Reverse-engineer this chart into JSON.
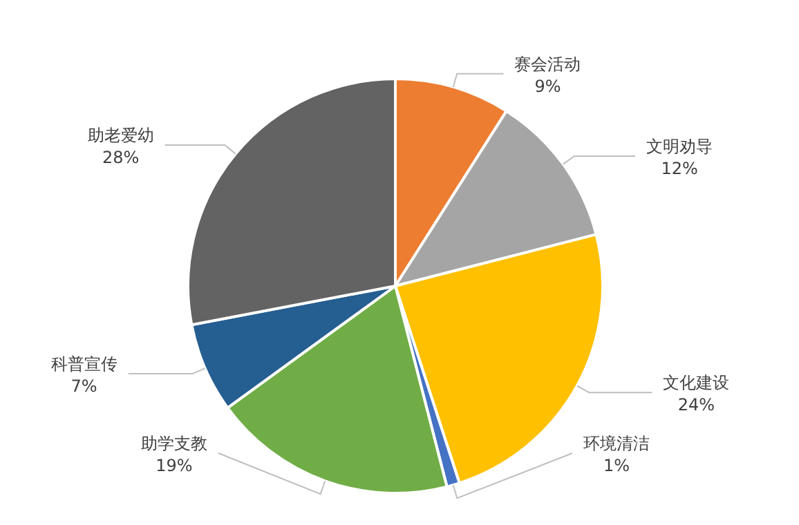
{
  "chart_data": {
    "type": "pie",
    "categories": [
      "赛会活动",
      "文明劝导",
      "文化建设",
      "环境清洁",
      "助学支教",
      "科普宣传",
      "助老爱幼"
    ],
    "values": [
      9,
      12,
      24,
      1,
      19,
      7,
      28
    ],
    "value_labels": [
      "9%",
      "12%",
      "24%",
      "1%",
      "19%",
      "7%",
      "28%"
    ],
    "colors": [
      "#ed7d31",
      "#a5a5a5",
      "#ffc000",
      "#4472c4",
      "#70ad47",
      "#255e91",
      "#636363"
    ],
    "legend": false
  }
}
